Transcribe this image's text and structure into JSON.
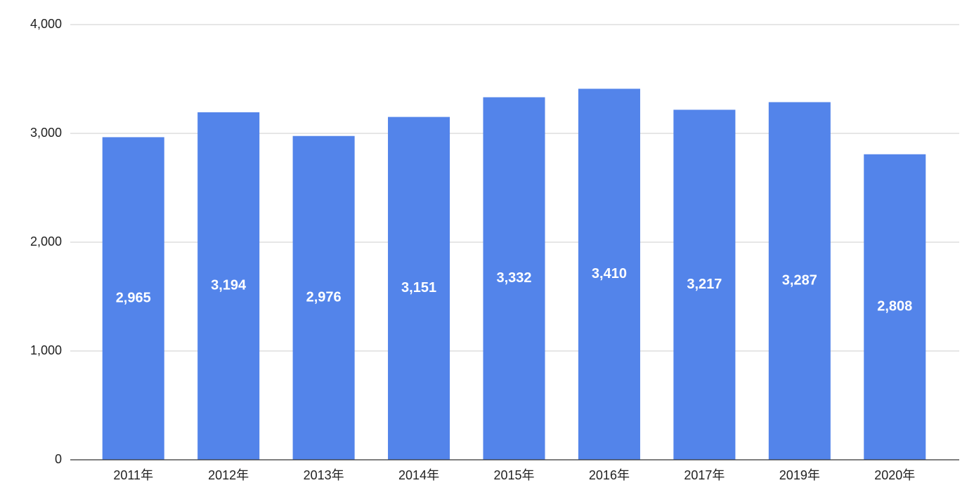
{
  "chart_data": {
    "type": "bar",
    "categories": [
      "2011年",
      "2012年",
      "2013年",
      "2014年",
      "2015年",
      "2016年",
      "2017年",
      "2019年",
      "2020年"
    ],
    "values": [
      2965,
      3194,
      2976,
      3151,
      3332,
      3410,
      3217,
      3287,
      2808
    ],
    "value_labels": [
      "2,965",
      "3,194",
      "2,976",
      "3,151",
      "3,332",
      "3,410",
      "3,217",
      "3,287",
      "2,808"
    ],
    "color": "#5384ea",
    "ylim": [
      0,
      4000
    ],
    "yticks": [
      0,
      {
        "value": 1000,
        "label": "1,000"
      },
      {
        "value": 2000,
        "label": "2,000"
      },
      {
        "value": 3000,
        "label": "3,000"
      },
      {
        "value": 4000,
        "label": "4,000"
      }
    ],
    "grid": true
  }
}
